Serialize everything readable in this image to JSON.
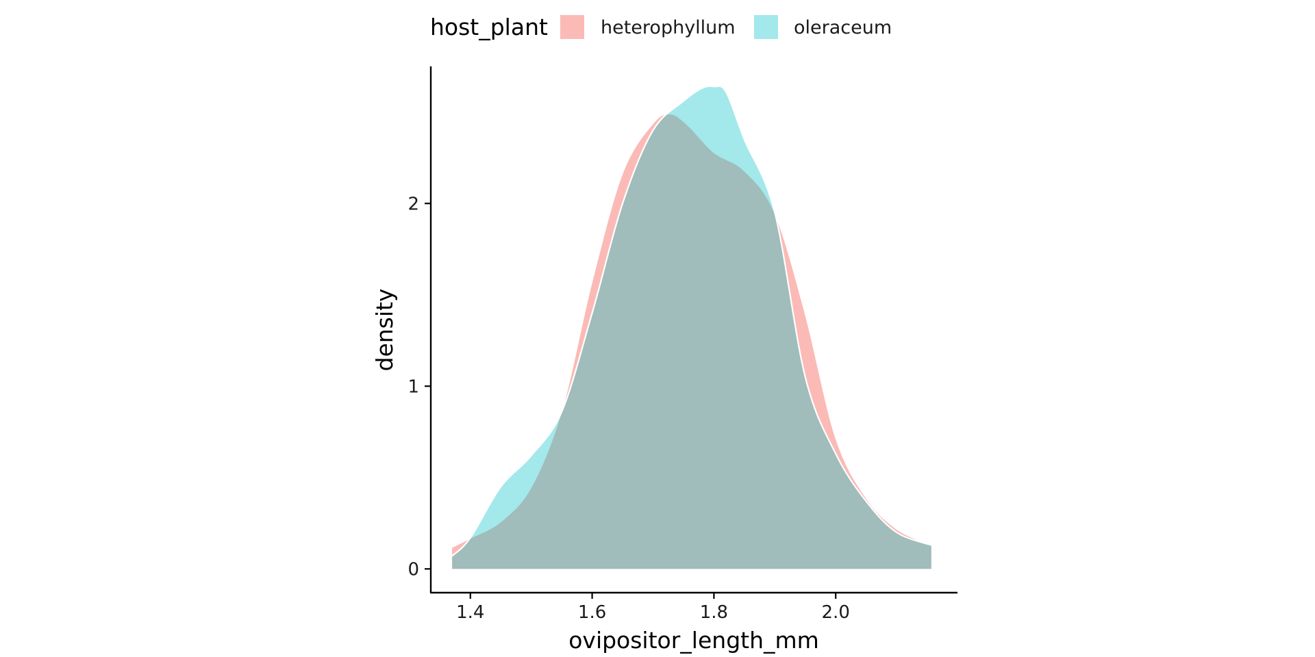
{
  "chart_data": {
    "type": "area",
    "subtype": "density",
    "xlabel": "ovipositor_length_mm",
    "ylabel": "density",
    "xlim": [
      1.335,
      2.2
    ],
    "ylim": [
      -0.13,
      2.75
    ],
    "x_ticks": [
      1.4,
      1.6,
      1.8,
      2.0
    ],
    "x_tick_labels": [
      "1.4",
      "1.6",
      "1.8",
      "2.0"
    ],
    "y_ticks": [
      0,
      1,
      2
    ],
    "y_tick_labels": [
      "0",
      "1",
      "2"
    ],
    "grid": false,
    "legend": {
      "title": "host_plant",
      "position": "top",
      "entries": [
        "heterophyllum",
        "oleraceum"
      ]
    },
    "series": [
      {
        "name": "heterophyllum",
        "color": "#F8766D",
        "fill_opacity": 0.5,
        "x": [
          1.37,
          1.4,
          1.45,
          1.5,
          1.55,
          1.6,
          1.65,
          1.7,
          1.73,
          1.76,
          1.8,
          1.85,
          1.9,
          1.95,
          2.0,
          2.05,
          2.1,
          2.157
        ],
        "y": [
          0.12,
          0.17,
          0.26,
          0.45,
          0.87,
          1.58,
          2.17,
          2.44,
          2.49,
          2.42,
          2.28,
          2.18,
          1.95,
          1.4,
          0.72,
          0.39,
          0.22,
          0.13
        ]
      },
      {
        "name": "oleraceum",
        "color": "#00BFC4",
        "fill_opacity": 0.36,
        "x": [
          1.37,
          1.4,
          1.45,
          1.5,
          1.55,
          1.6,
          1.65,
          1.7,
          1.75,
          1.78,
          1.8,
          1.82,
          1.85,
          1.9,
          1.95,
          2.0,
          2.05,
          2.1,
          2.157
        ],
        "y": [
          0.07,
          0.17,
          0.45,
          0.62,
          0.86,
          1.4,
          2.0,
          2.4,
          2.56,
          2.63,
          2.64,
          2.61,
          2.35,
          1.95,
          1.05,
          0.63,
          0.37,
          0.2,
          0.13
        ]
      }
    ]
  }
}
